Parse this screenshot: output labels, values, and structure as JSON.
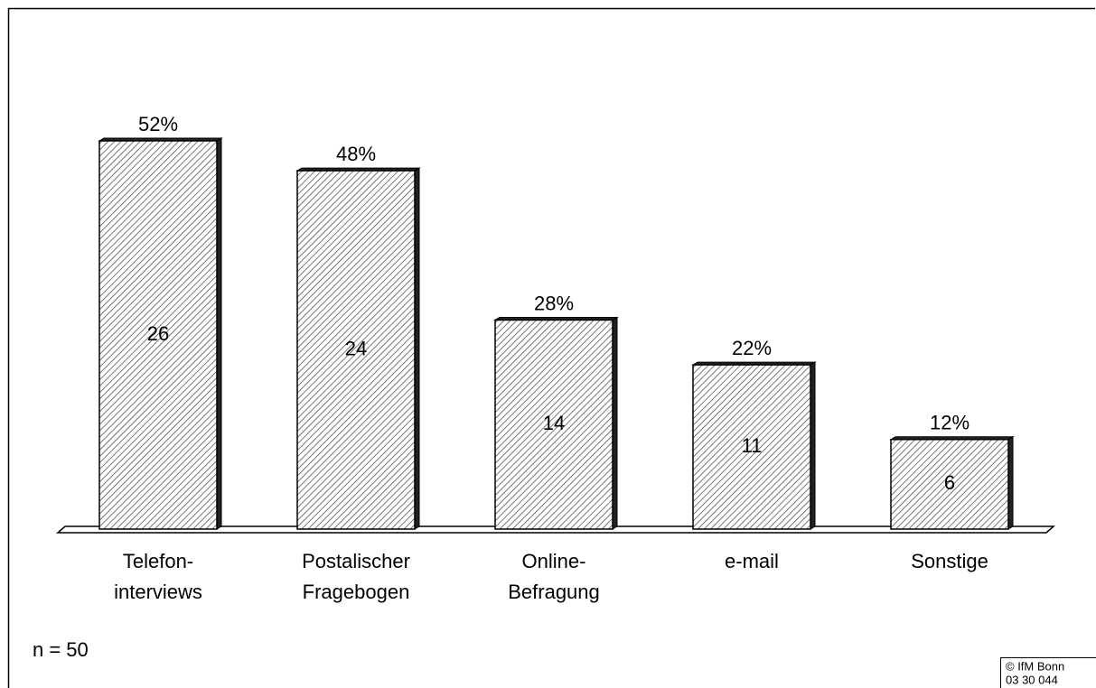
{
  "chart_data": {
    "type": "bar",
    "categories": [
      [
        "Telefon-",
        "interviews"
      ],
      [
        "Postalischer",
        "Fragebogen"
      ],
      [
        "Online-",
        "Befragung"
      ],
      [
        "e-mail"
      ],
      [
        "Sonstige"
      ]
    ],
    "values": [
      52,
      48,
      28,
      22,
      12
    ],
    "value_labels": [
      "52%",
      "48%",
      "28%",
      "22%",
      "12%"
    ],
    "counts": [
      26,
      24,
      14,
      11,
      6
    ],
    "color": "#ffffff",
    "note": "n = 50",
    "source": [
      "© IfM Bonn",
      "03 30 044"
    ]
  }
}
